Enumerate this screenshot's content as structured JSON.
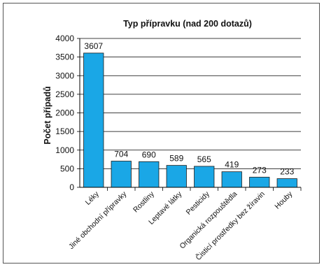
{
  "chart_data": {
    "type": "bar",
    "title": "Typ přípravku (nad 200 dotazů)",
    "xlabel": "",
    "ylabel": "Počet případů",
    "ylim": [
      0,
      4000
    ],
    "yticks": [
      0,
      500,
      1000,
      1500,
      2000,
      2500,
      3000,
      3500,
      4000
    ],
    "grid": true,
    "categories": [
      "Léky",
      "Jiné obchodní přípravky",
      "Rostliny",
      "Leptavé látky",
      "Pesticidy",
      "Organická rozpouštědla",
      "Čisticí prostředky bez žíravin",
      "Houby"
    ],
    "values": [
      3607,
      704,
      690,
      589,
      565,
      419,
      273,
      233
    ],
    "bar_color": "#1aa7e6"
  }
}
